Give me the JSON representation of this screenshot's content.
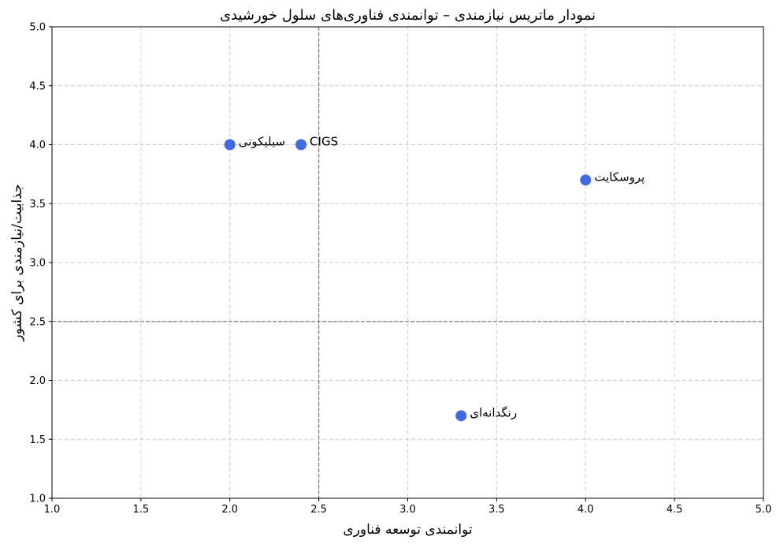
{
  "chart_data": {
    "type": "scatter",
    "title": "نمودار ماتریس نیازمندی – توانمندی فناوری‌های سلول خورشیدی",
    "xlabel": "توانمندی توسعه فناوری",
    "ylabel": "جذابیت/نیازمندی برای کشور",
    "xlim": [
      1.0,
      5.0
    ],
    "ylim": [
      1.0,
      5.0
    ],
    "xticks": [
      "1.0",
      "1.5",
      "2.0",
      "2.5",
      "3.0",
      "3.5",
      "4.0",
      "4.5",
      "5.0"
    ],
    "yticks": [
      "1.0",
      "1.5",
      "2.0",
      "2.5",
      "3.0",
      "3.5",
      "4.0",
      "4.5",
      "5.0"
    ],
    "grid": true,
    "reference_lines": {
      "x": 2.5,
      "y": 2.5
    },
    "point_color": "#4169e1",
    "points": [
      {
        "label": "سیلیکونی",
        "x": 2.0,
        "y": 4.0
      },
      {
        "label": "CIGS",
        "x": 2.4,
        "y": 4.0
      },
      {
        "label": "پروسکایت",
        "x": 4.0,
        "y": 3.7
      },
      {
        "label": "رنگدانه‌ای",
        "x": 3.3,
        "y": 1.7
      }
    ]
  }
}
